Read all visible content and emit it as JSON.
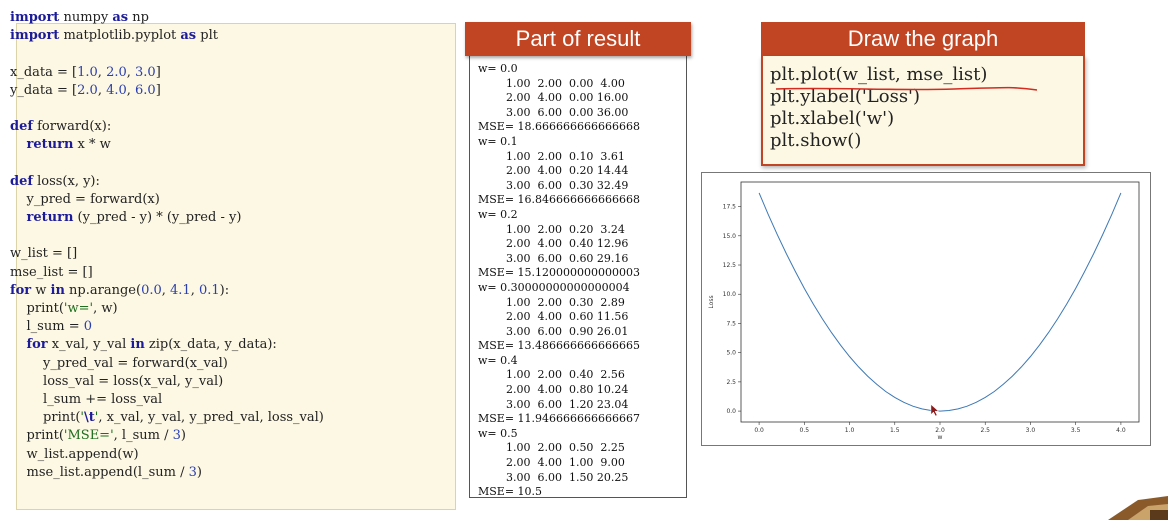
{
  "code_lines": [
    [
      {
        "t": "import",
        "c": "kw"
      },
      {
        "t": " numpy "
      },
      {
        "t": "as",
        "c": "kw"
      },
      {
        "t": " np"
      }
    ],
    [
      {
        "t": "import",
        "c": "kw"
      },
      {
        "t": " matplotlib.pyplot "
      },
      {
        "t": "as",
        "c": "kw"
      },
      {
        "t": " plt"
      }
    ],
    [],
    [
      {
        "t": "x_data = ["
      },
      {
        "t": "1.0",
        "c": "num"
      },
      {
        "t": ", "
      },
      {
        "t": "2.0",
        "c": "num"
      },
      {
        "t": ", "
      },
      {
        "t": "3.0",
        "c": "num"
      },
      {
        "t": "]"
      }
    ],
    [
      {
        "t": "y_data = ["
      },
      {
        "t": "2.0",
        "c": "num"
      },
      {
        "t": ", "
      },
      {
        "t": "4.0",
        "c": "num"
      },
      {
        "t": ", "
      },
      {
        "t": "6.0",
        "c": "num"
      },
      {
        "t": "]"
      }
    ],
    [],
    [
      {
        "t": "def",
        "c": "kw"
      },
      {
        "t": " forward(x):"
      }
    ],
    [
      {
        "t": "    "
      },
      {
        "t": "return",
        "c": "kw"
      },
      {
        "t": " x * w"
      }
    ],
    [],
    [
      {
        "t": "def",
        "c": "kw"
      },
      {
        "t": " loss(x, y):"
      }
    ],
    [
      {
        "t": "    y_pred = forward(x)"
      }
    ],
    [
      {
        "t": "    "
      },
      {
        "t": "return",
        "c": "kw"
      },
      {
        "t": " (y_pred - y) * (y_pred - y)"
      }
    ],
    [],
    [
      {
        "t": "w_list = []"
      }
    ],
    [
      {
        "t": "mse_list = []"
      }
    ],
    [
      {
        "t": "for",
        "c": "kw"
      },
      {
        "t": " w "
      },
      {
        "t": "in",
        "c": "kw"
      },
      {
        "t": " np.arange("
      },
      {
        "t": "0.0",
        "c": "num"
      },
      {
        "t": ", "
      },
      {
        "t": "4.1",
        "c": "num"
      },
      {
        "t": ", "
      },
      {
        "t": "0.1",
        "c": "num"
      },
      {
        "t": "):"
      }
    ],
    [
      {
        "t": "    print("
      },
      {
        "t": "'w='",
        "c": "str"
      },
      {
        "t": ", w)"
      }
    ],
    [
      {
        "t": "    l_sum = "
      },
      {
        "t": "0",
        "c": "num"
      }
    ],
    [
      {
        "t": "    "
      },
      {
        "t": "for",
        "c": "kw"
      },
      {
        "t": " x_val, y_val "
      },
      {
        "t": "in",
        "c": "kw"
      },
      {
        "t": " zip(x_data, y_data):"
      }
    ],
    [
      {
        "t": "        y_pred_val = forward(x_val)"
      }
    ],
    [
      {
        "t": "        loss_val = loss(x_val, y_val)"
      }
    ],
    [
      {
        "t": "        l_sum += loss_val"
      }
    ],
    [
      {
        "t": "        print("
      },
      {
        "t": "'",
        "c": "str"
      },
      {
        "t": "\\t",
        "c": "esc"
      },
      {
        "t": "'",
        "c": "str"
      },
      {
        "t": ", x_val, y_val, y_pred_val, loss_val)"
      }
    ],
    [
      {
        "t": "    print("
      },
      {
        "t": "'MSE='",
        "c": "str"
      },
      {
        "t": ", l_sum / "
      },
      {
        "t": "3",
        "c": "num"
      },
      {
        "t": ")"
      }
    ],
    [
      {
        "t": "    w_list.append(w)"
      }
    ],
    [
      {
        "t": "    mse_list.append(l_sum / "
      },
      {
        "t": "3",
        "c": "num"
      },
      {
        "t": ")"
      }
    ]
  ],
  "result": {
    "title": "Part of result",
    "lines": [
      "w= 0.0",
      "        1.00  2.00  0.00  4.00",
      "        2.00  4.00  0.00 16.00",
      "        3.00  6.00  0.00 36.00",
      "MSE= 18.666666666666668",
      "w= 0.1",
      "        1.00  2.00  0.10  3.61",
      "        2.00  4.00  0.20 14.44",
      "        3.00  6.00  0.30 32.49",
      "MSE= 16.846666666666668",
      "w= 0.2",
      "        1.00  2.00  0.20  3.24",
      "        2.00  4.00  0.40 12.96",
      "        3.00  6.00  0.60 29.16",
      "MSE= 15.120000000000003",
      "w= 0.30000000000000004",
      "        1.00  2.00  0.30  2.89",
      "        2.00  4.00  0.60 11.56",
      "        3.00  6.00  0.90 26.01",
      "MSE= 13.486666666666665",
      "w= 0.4",
      "        1.00  2.00  0.40  2.56",
      "        2.00  4.00  0.80 10.24",
      "        3.00  6.00  1.20 23.04",
      "MSE= 11.946666666666667",
      "w= 0.5",
      "        1.00  2.00  0.50  2.25",
      "        2.00  4.00  1.00  9.00",
      "        3.00  6.00  1.50 20.25",
      "MSE= 10.5"
    ]
  },
  "graph": {
    "title": "Draw the graph",
    "code_lines": [
      "plt.plot(w_list, mse_list)",
      "plt.ylabel('Loss')",
      "plt.xlabel('w')",
      "plt.show()"
    ]
  },
  "chart_data": {
    "type": "line",
    "title": "",
    "xlabel": "w",
    "ylabel": "Loss",
    "xlim": [
      0.0,
      4.0
    ],
    "ylim": [
      0.0,
      18.67
    ],
    "x_ticks": [
      "0.0",
      "0.5",
      "1.0",
      "1.5",
      "2.0",
      "2.5",
      "3.0",
      "3.5",
      "4.0"
    ],
    "y_ticks": [
      "0.0",
      "2.5",
      "5.0",
      "7.5",
      "10.0",
      "12.5",
      "15.0",
      "17.5"
    ],
    "line_color": "#3c78b4",
    "series": [
      {
        "x": [
          0.0,
          0.1,
          0.2,
          0.3,
          0.4,
          0.5,
          0.6,
          0.7,
          0.8,
          0.9,
          1.0,
          1.1,
          1.2,
          1.3,
          1.4,
          1.5,
          1.6,
          1.7,
          1.8,
          1.9,
          2.0,
          2.1,
          2.2,
          2.3,
          2.4,
          2.5,
          2.6,
          2.7,
          2.8,
          2.9,
          3.0,
          3.1,
          3.2,
          3.3,
          3.4,
          3.5,
          3.6,
          3.7,
          3.8,
          3.9,
          4.0
        ],
        "y": [
          18.67,
          16.85,
          15.12,
          13.49,
          11.95,
          10.5,
          9.15,
          7.89,
          6.72,
          5.65,
          4.67,
          3.78,
          2.99,
          2.29,
          1.68,
          1.17,
          0.75,
          0.42,
          0.19,
          0.05,
          0.0,
          0.05,
          0.19,
          0.42,
          0.75,
          1.17,
          1.68,
          2.29,
          2.99,
          3.78,
          4.67,
          5.65,
          6.72,
          7.89,
          9.15,
          10.5,
          11.95,
          13.49,
          15.12,
          16.85,
          18.67
        ]
      }
    ]
  },
  "colors": {
    "header_bg": "#c14523",
    "code_bg": "#fdf8e4",
    "keyword": "#1c1c9a",
    "number": "#2a3fb0",
    "string": "#1d6e1d"
  }
}
